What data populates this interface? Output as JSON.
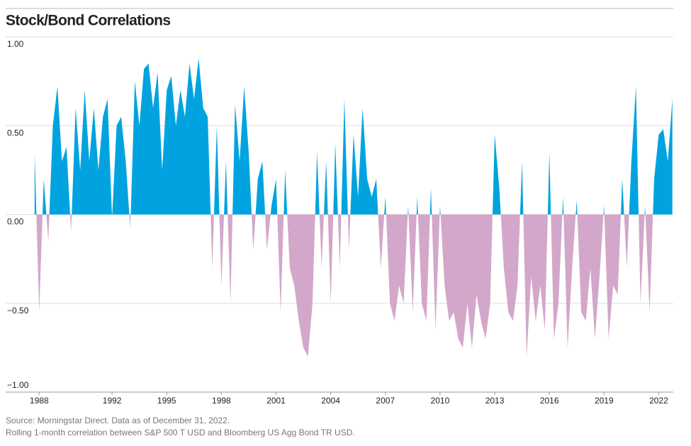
{
  "chart_data": {
    "type": "area",
    "title": "Stock/Bond Correlations",
    "source": "Source: Morningstar Direct. Data as of December 31, 2022.",
    "note": "Rolling 1-month correlation between S&P 500 T USD and Bloomberg US Agg Bond TR USD.",
    "positive_color": "#00a3e0",
    "negative_color": "#d3a7c9",
    "grid": true,
    "xlim": [
      1987.6,
      2022.8
    ],
    "xticks": [
      1988,
      1992,
      1995,
      1998,
      2001,
      2004,
      2007,
      2010,
      2013,
      2016,
      2019,
      2022
    ],
    "ylim": [
      -1,
      1
    ],
    "yticks": [
      {
        "value": 1,
        "label": "1.00"
      },
      {
        "value": 0.5,
        "label": "0.50"
      },
      {
        "value": 0,
        "label": "0.00"
      },
      {
        "value": -0.5,
        "label": "−0.50"
      },
      {
        "value": -1,
        "label": "−1.00"
      }
    ],
    "x": [
      1987.75,
      1988,
      1988.25,
      1988.5,
      1988.75,
      1989,
      1989.25,
      1989.5,
      1989.75,
      1990,
      1990.25,
      1990.5,
      1990.75,
      1991,
      1991.25,
      1991.5,
      1991.75,
      1992,
      1992.25,
      1992.5,
      1992.75,
      1993,
      1993.25,
      1993.5,
      1993.75,
      1994,
      1994.25,
      1994.5,
      1994.75,
      1995,
      1995.25,
      1995.5,
      1995.75,
      1996,
      1996.25,
      1996.5,
      1996.75,
      1997,
      1997.25,
      1997.5,
      1997.75,
      1998,
      1998.25,
      1998.5,
      1998.75,
      1999,
      1999.25,
      1999.5,
      1999.75,
      2000,
      2000.25,
      2000.5,
      2000.75,
      2001,
      2001.25,
      2001.5,
      2001.75,
      2002,
      2002.25,
      2002.5,
      2002.75,
      2003,
      2003.25,
      2003.5,
      2003.75,
      2004,
      2004.25,
      2004.5,
      2004.75,
      2005,
      2005.25,
      2005.5,
      2005.75,
      2006,
      2006.25,
      2006.5,
      2006.75,
      2007,
      2007.25,
      2007.5,
      2007.75,
      2008,
      2008.25,
      2008.5,
      2008.75,
      2009,
      2009.25,
      2009.5,
      2009.75,
      2010,
      2010.25,
      2010.5,
      2010.75,
      2011,
      2011.25,
      2011.5,
      2011.75,
      2012,
      2012.25,
      2012.5,
      2012.75,
      2013,
      2013.25,
      2013.5,
      2013.75,
      2014,
      2014.25,
      2014.5,
      2014.75,
      2015,
      2015.25,
      2015.5,
      2015.75,
      2016,
      2016.25,
      2016.5,
      2016.75,
      2017,
      2017.25,
      2017.5,
      2017.75,
      2018,
      2018.25,
      2018.5,
      2018.75,
      2019,
      2019.25,
      2019.5,
      2019.75,
      2020,
      2020.25,
      2020.5,
      2020.75,
      2021,
      2021.25,
      2021.5,
      2021.75,
      2022,
      2022.25,
      2022.5,
      2022.75
    ],
    "values": [
      0.35,
      -0.55,
      0.2,
      -0.15,
      0.5,
      0.72,
      0.3,
      0.38,
      -0.1,
      0.6,
      0.25,
      0.7,
      0.3,
      0.6,
      0.25,
      0.55,
      0.65,
      -0.02,
      0.5,
      0.55,
      0.3,
      -0.08,
      0.75,
      0.5,
      0.82,
      0.85,
      0.6,
      0.8,
      0.25,
      0.7,
      0.78,
      0.5,
      0.7,
      0.55,
      0.85,
      0.65,
      0.88,
      0.6,
      0.55,
      -0.3,
      0.5,
      -0.4,
      0.3,
      -0.5,
      0.62,
      0.3,
      0.72,
      0.35,
      -0.2,
      0.2,
      0.3,
      -0.2,
      0.05,
      0.2,
      -0.55,
      0.25,
      -0.3,
      -0.4,
      -0.6,
      -0.75,
      -0.8,
      -0.5,
      0.35,
      -0.3,
      0.3,
      -0.5,
      0.4,
      -0.3,
      0.65,
      -0.2,
      0.45,
      0.1,
      0.6,
      0.2,
      0.1,
      0.2,
      -0.3,
      0.1,
      -0.5,
      -0.6,
      -0.4,
      -0.5,
      0.05,
      -0.55,
      0.1,
      -0.5,
      -0.6,
      0.15,
      -0.65,
      0.05,
      -0.4,
      -0.6,
      -0.55,
      -0.7,
      -0.75,
      -0.5,
      -0.75,
      -0.45,
      -0.6,
      -0.7,
      -0.5,
      0.45,
      0.15,
      -0.3,
      -0.55,
      -0.6,
      -0.4,
      0.3,
      -0.8,
      -0.35,
      -0.6,
      -0.4,
      -0.65,
      0.35,
      -0.7,
      -0.5,
      0.1,
      -0.75,
      -0.3,
      0.08,
      -0.55,
      -0.6,
      -0.3,
      -0.7,
      -0.35,
      0.05,
      -0.7,
      -0.4,
      -0.45,
      0.2,
      -0.3,
      0.3,
      0.72,
      -0.5,
      0.05,
      -0.55,
      0.2,
      0.45,
      0.48,
      0.3,
      0.65
    ]
  }
}
